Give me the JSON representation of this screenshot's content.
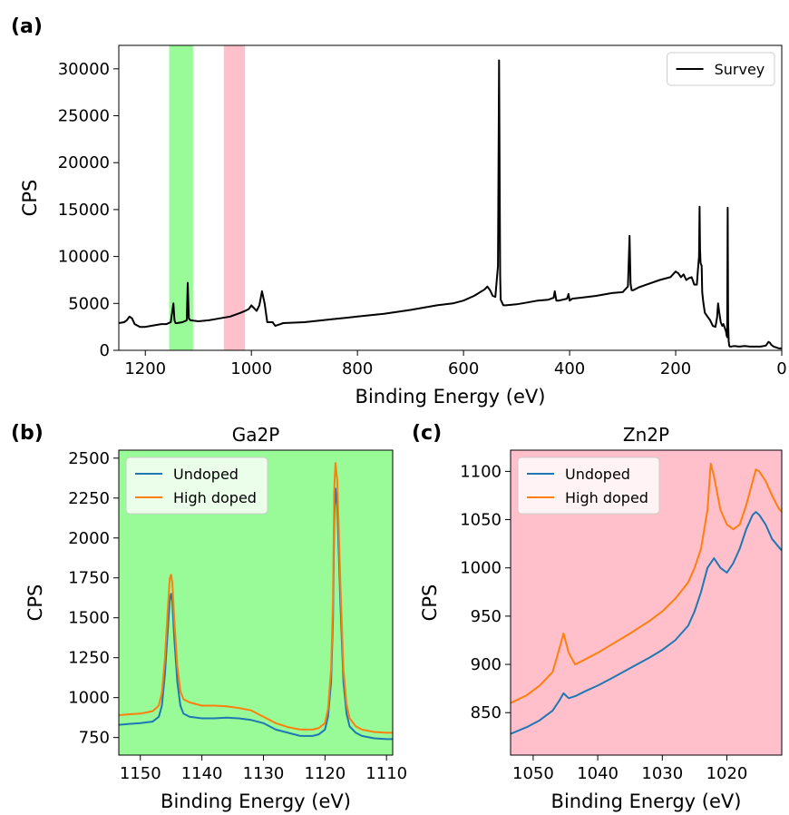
{
  "chart_data": [
    {
      "panel_label": "(a)",
      "type": "line",
      "title": "",
      "xlabel": "Binding Energy (eV)",
      "ylabel": "CPS",
      "xlim": [
        1250,
        0
      ],
      "ylim": [
        0,
        32500
      ],
      "x_reversed": true,
      "grid": false,
      "legend": "top-right",
      "xticks": [
        1200,
        1000,
        800,
        600,
        400,
        200,
        0
      ],
      "yticks": [
        0,
        5000,
        10000,
        15000,
        20000,
        25000,
        30000
      ],
      "shaded_regions": [
        {
          "x": [
            1155,
            1110
          ],
          "color": "#98fb98"
        },
        {
          "x": [
            1052,
            1012
          ],
          "color": "#ffc0cb"
        }
      ],
      "series": [
        {
          "name": "Survey",
          "color": "#000000",
          "x": [
            1250,
            1240,
            1235,
            1230,
            1225,
            1220,
            1210,
            1200,
            1190,
            1180,
            1170,
            1160,
            1152,
            1147,
            1145,
            1143,
            1140,
            1130,
            1122,
            1120,
            1118,
            1115,
            1100,
            1080,
            1060,
            1040,
            1030,
            1020,
            1012,
            1005,
            1000,
            990,
            985,
            980,
            975,
            970,
            960,
            955,
            950,
            940,
            900,
            850,
            800,
            750,
            700,
            650,
            620,
            600,
            580,
            560,
            555,
            550,
            545,
            540,
            535,
            533,
            531,
            530,
            525,
            520,
            500,
            480,
            460,
            440,
            430,
            428,
            425,
            420,
            405,
            402,
            400,
            395,
            380,
            350,
            320,
            300,
            290,
            287,
            285,
            283,
            280,
            270,
            250,
            230,
            210,
            200,
            195,
            190,
            185,
            180,
            175,
            170,
            168,
            165,
            160,
            158,
            156,
            155,
            154,
            153,
            151,
            150,
            148,
            145,
            140,
            135,
            130,
            125,
            122,
            120,
            118,
            115,
            112,
            110,
            108,
            105,
            104,
            103,
            102,
            101,
            100,
            99,
            98,
            96,
            90,
            80,
            70,
            60,
            50,
            40,
            30,
            25,
            22,
            20,
            15,
            10,
            5,
            0
          ],
          "y": [
            2900,
            3000,
            3200,
            3600,
            3400,
            2800,
            2500,
            2500,
            2600,
            2700,
            2800,
            2800,
            3000,
            5000,
            3200,
            2900,
            2900,
            3000,
            3200,
            7200,
            3400,
            3200,
            3100,
            3200,
            3400,
            3600,
            3800,
            4000,
            4200,
            4400,
            4800,
            4200,
            4800,
            6300,
            5000,
            3000,
            3000,
            2600,
            2700,
            2900,
            3000,
            3300,
            3600,
            3900,
            4300,
            4800,
            5000,
            5300,
            5800,
            6500,
            6800,
            6400,
            5800,
            5700,
            9000,
            30900,
            8000,
            5400,
            4800,
            4800,
            4900,
            5100,
            5300,
            5400,
            5600,
            6300,
            5300,
            5300,
            5500,
            6000,
            5300,
            5500,
            5600,
            5800,
            6100,
            6200,
            6800,
            12200,
            7100,
            6400,
            6400,
            6700,
            7100,
            7500,
            7800,
            8400,
            8200,
            7800,
            8100,
            7500,
            7700,
            7800,
            7500,
            7000,
            7000,
            8600,
            10000,
            15300,
            10800,
            9300,
            9000,
            6200,
            5200,
            4000,
            3600,
            3200,
            2600,
            2500,
            3500,
            5000,
            4100,
            3000,
            2600,
            2800,
            2500,
            2000,
            1600,
            1400,
            15200,
            3000,
            1000,
            500,
            400,
            400,
            450,
            400,
            450,
            400,
            400,
            400,
            500,
            900,
            800,
            600,
            400,
            300,
            200,
            200
          ]
        }
      ]
    },
    {
      "panel_label": "(b)",
      "type": "line",
      "title": "Ga2P",
      "xlabel": "Binding Energy (eV)",
      "ylabel": "CPS",
      "xlim": [
        1153.5,
        1109
      ],
      "ylim": [
        640,
        2550
      ],
      "x_reversed": true,
      "background": "#98fb98",
      "grid": false,
      "legend": "top-left",
      "xticks": [
        1150,
        1140,
        1130,
        1120,
        1110
      ],
      "yticks": [
        750,
        1000,
        1250,
        1500,
        1750,
        2000,
        2250,
        2500
      ],
      "series": [
        {
          "name": "Undoped",
          "color": "#1f77b4",
          "x": [
            1153.5,
            1152,
            1150,
            1148,
            1147,
            1146.5,
            1146,
            1145.5,
            1145.2,
            1145,
            1144.8,
            1144.5,
            1144,
            1143.5,
            1143,
            1142,
            1140,
            1138,
            1136,
            1134,
            1132,
            1130,
            1128,
            1126,
            1124,
            1122,
            1121,
            1120,
            1119.5,
            1119,
            1118.7,
            1118.5,
            1118.3,
            1118,
            1117.5,
            1117,
            1116.5,
            1116,
            1115,
            1114,
            1112,
            1110,
            1109
          ],
          "y": [
            830,
            835,
            840,
            850,
            880,
            950,
            1150,
            1450,
            1620,
            1650,
            1600,
            1380,
            1100,
            950,
            900,
            880,
            870,
            870,
            875,
            870,
            860,
            840,
            800,
            780,
            760,
            760,
            770,
            800,
            880,
            1100,
            1500,
            2100,
            2310,
            2200,
            1600,
            1100,
            900,
            820,
            780,
            760,
            745,
            740,
            740
          ]
        },
        {
          "name": "High doped",
          "color": "#ff7f0e",
          "x": [
            1153.5,
            1152,
            1150,
            1148,
            1147,
            1146.5,
            1146,
            1145.5,
            1145.2,
            1145,
            1144.8,
            1144.5,
            1144,
            1143.5,
            1143,
            1142,
            1140,
            1138,
            1136,
            1134,
            1132,
            1130,
            1128,
            1126,
            1124,
            1122,
            1121,
            1120,
            1119.5,
            1119,
            1118.7,
            1118.5,
            1118.3,
            1118,
            1117.5,
            1117,
            1116.5,
            1116,
            1115,
            1114,
            1112,
            1110,
            1109
          ],
          "y": [
            890,
            895,
            900,
            915,
            950,
            1030,
            1250,
            1580,
            1750,
            1770,
            1720,
            1500,
            1200,
            1040,
            990,
            970,
            950,
            950,
            945,
            935,
            920,
            880,
            840,
            815,
            800,
            800,
            810,
            840,
            930,
            1180,
            1620,
            2300,
            2470,
            2360,
            1720,
            1180,
            960,
            870,
            820,
            800,
            785,
            780,
            780
          ]
        }
      ]
    },
    {
      "panel_label": "(c)",
      "type": "line",
      "title": "Zn2P",
      "xlabel": "Binding Energy (eV)",
      "ylabel": "CPS",
      "xlim": [
        1053.5,
        1011.5
      ],
      "ylim": [
        806,
        1122
      ],
      "x_reversed": true,
      "background": "#ffc0cb",
      "grid": false,
      "legend": "top-left",
      "xticks": [
        1050,
        1040,
        1030,
        1020
      ],
      "yticks": [
        850,
        900,
        950,
        1000,
        1050,
        1100
      ],
      "series": [
        {
          "name": "Undoped",
          "color": "#1f77b4",
          "x": [
            1053.5,
            1051,
            1049,
            1047,
            1046,
            1045.3,
            1044.5,
            1043.5,
            1042,
            1040,
            1038,
            1035,
            1032,
            1030,
            1028,
            1026,
            1025,
            1024,
            1023,
            1022,
            1021,
            1020,
            1019,
            1018,
            1017,
            1016,
            1015.5,
            1015,
            1014,
            1013,
            1012,
            1011.5
          ],
          "y": [
            828,
            835,
            842,
            852,
            862,
            870,
            865,
            867,
            872,
            878,
            885,
            896,
            907,
            915,
            925,
            940,
            955,
            975,
            1000,
            1010,
            1000,
            995,
            1005,
            1020,
            1040,
            1055,
            1058,
            1055,
            1045,
            1030,
            1022,
            1018
          ]
        },
        {
          "name": "High doped",
          "color": "#ff7f0e",
          "x": [
            1053.5,
            1051,
            1049,
            1047,
            1046,
            1045.3,
            1044.5,
            1043.5,
            1042,
            1040,
            1038,
            1035,
            1032,
            1030,
            1028,
            1026,
            1025,
            1024,
            1023,
            1022.5,
            1022,
            1021,
            1020,
            1019,
            1018,
            1017,
            1016,
            1015.5,
            1015,
            1014,
            1013,
            1012,
            1011.5
          ],
          "y": [
            860,
            868,
            878,
            892,
            915,
            932,
            912,
            900,
            905,
            912,
            920,
            932,
            945,
            955,
            968,
            985,
            1000,
            1020,
            1060,
            1108,
            1095,
            1060,
            1045,
            1040,
            1045,
            1065,
            1090,
            1102,
            1100,
            1090,
            1075,
            1062,
            1058
          ]
        }
      ]
    }
  ]
}
